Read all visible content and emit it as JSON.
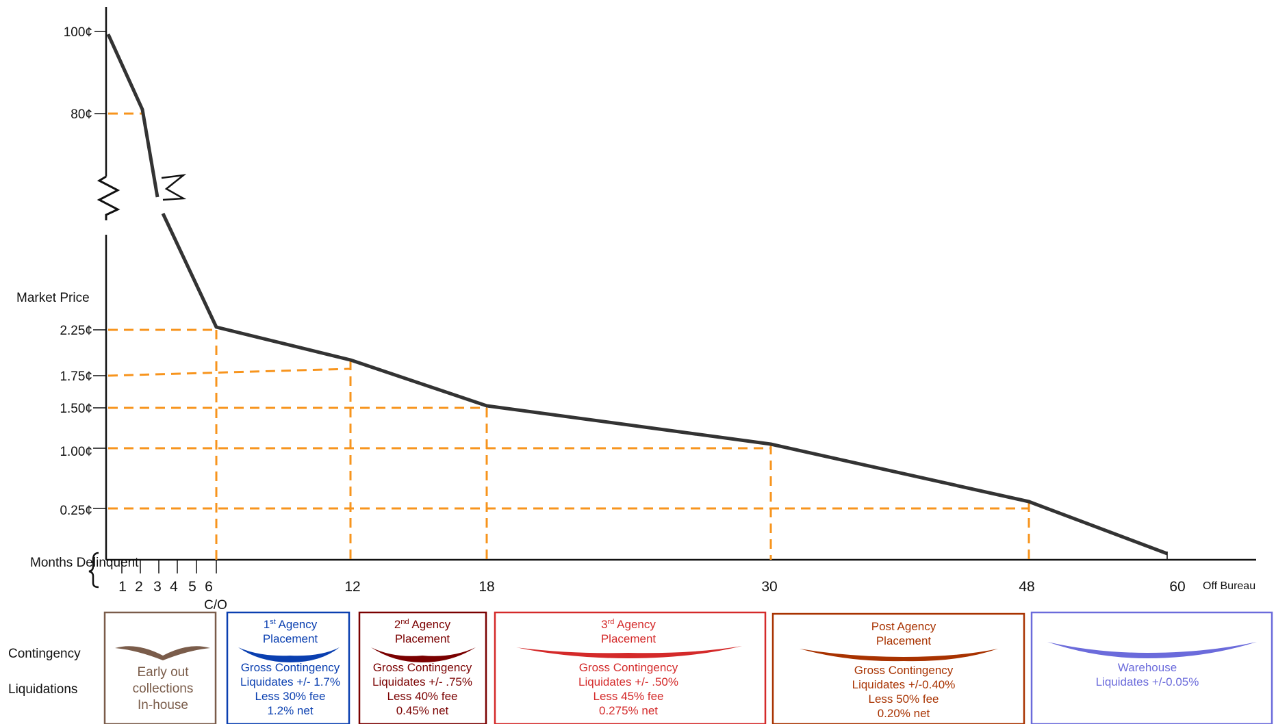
{
  "chart_data": {
    "type": "line",
    "ylabel": "Market Price",
    "xlabel": "Months Delinquent",
    "y_ticks_upper": [
      "100¢",
      "80¢"
    ],
    "y_ticks_lower": [
      "2.25¢",
      "1.75¢",
      "1.50¢",
      "1.00¢",
      "0.25¢"
    ],
    "x_ticks_small": [
      "1",
      "2",
      "3",
      "4",
      "5",
      "6"
    ],
    "x_ticks_major": [
      "12",
      "18",
      "30",
      "48",
      "60"
    ],
    "x_extra_labels": {
      "chargeoff": "C/O",
      "off_bureau": "Off Bureau"
    },
    "axis_break": true,
    "series": [
      {
        "values": [
          {
            "x": 0,
            "y": "100¢"
          },
          {
            "x": 1,
            "y": "80¢"
          },
          {
            "x": 6,
            "y": "2.25¢"
          },
          {
            "x": 12,
            "y": "1.75¢"
          },
          {
            "x": 18,
            "y": "1.50¢"
          },
          {
            "x": 30,
            "y": "1.00¢"
          },
          {
            "x": 48,
            "y": "0.25¢"
          },
          {
            "x": 60,
            "y": "0"
          }
        ]
      }
    ],
    "colors": {
      "line": "#333333",
      "guides": "#f7941d"
    }
  },
  "row_labels": {
    "contingency": "Contingency",
    "liquidations": "Liquidations"
  },
  "phases": [
    {
      "color": "#7a5c4a",
      "lines": [
        "Early out",
        "collections",
        "In-house"
      ]
    },
    {
      "color": "#0a3fb0",
      "title1_num": "1",
      "title1_sup": "st",
      "title1_rest": " Agency",
      "title2": "Placement",
      "lines": [
        "Gross Contingency",
        "Liquidates +/- 1.7%",
        "Less 30% fee",
        "1.2% net"
      ]
    },
    {
      "color": "#7a0000",
      "title1_num": "2",
      "title1_sup": "nd",
      "title1_rest": " Agency",
      "title2": "Placement",
      "lines": [
        "Gross Contingency",
        "Liquidates +/- .75%",
        "Less 40% fee",
        "0.45% net"
      ]
    },
    {
      "color": "#d42a2a",
      "title1_num": "3",
      "title1_sup": "rd",
      "title1_rest": " Agency",
      "title2": "Placement",
      "lines": [
        "Gross Contingency",
        "Liquidates +/- .50%",
        "Less 45% fee",
        "0.275% net"
      ]
    },
    {
      "color": "#a83200",
      "title1_num": "",
      "title1_sup": "",
      "title1_rest": "Post Agency",
      "title2": "Placement",
      "lines": [
        "Gross Contingency",
        "Liquidates +/-0.40%",
        "Less 50% fee",
        "0.20% net"
      ]
    },
    {
      "color": "#6b6bdb",
      "lines": [
        "Warehouse",
        "Liquidates +/-0.05%"
      ]
    }
  ]
}
